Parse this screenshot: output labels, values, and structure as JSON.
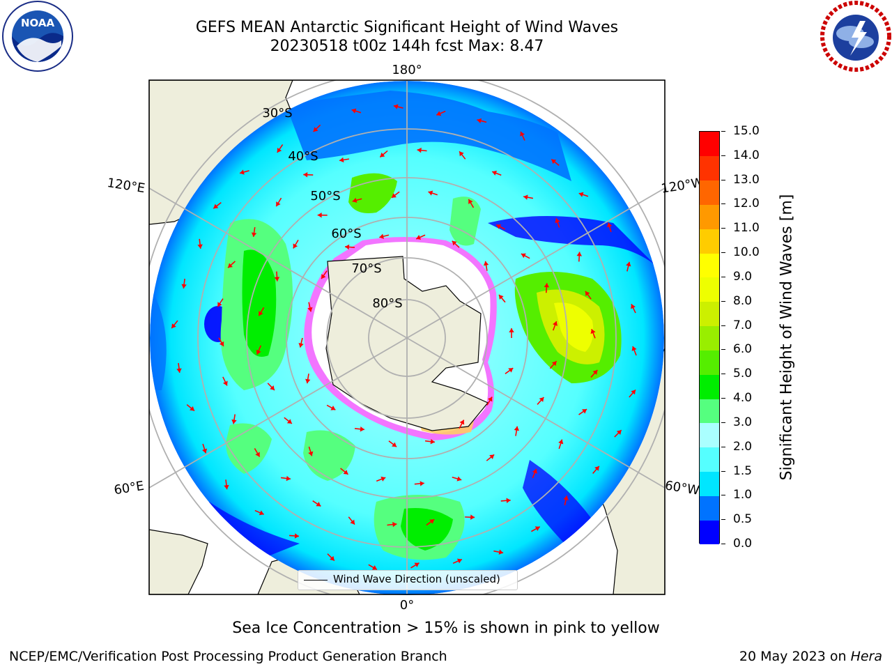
{
  "title": {
    "line1": "GEFS MEAN Antarctic Significant Height of Wind Waves",
    "line2": "20230518 t00z 144h fcst   Max: 8.47"
  },
  "logos": {
    "left": "noaa-logo",
    "right": "national-weather-service-logo"
  },
  "map": {
    "projection": "south-polar-stereographic",
    "lon_labels": [
      "180°",
      "120°E",
      "120°W",
      "60°E",
      "60°W",
      "0°"
    ],
    "lat_labels": [
      "30°S",
      "40°S",
      "50°S",
      "60°S",
      "70°S",
      "80°S"
    ],
    "legend": "Wind Wave Direction (unscaled)",
    "arrow_color": "#ff0000",
    "land_color": "#eeeedc",
    "sea_ice_colors": [
      "#ff00ff",
      "#ffff00"
    ]
  },
  "colorbar": {
    "label": "Significant Height of Wind Waves [m]",
    "ticks": [
      "0.0",
      "0.5",
      "1.0",
      "1.5",
      "2.0",
      "3.0",
      "4.0",
      "5.0",
      "6.0",
      "7.0",
      "8.0",
      "9.0",
      "10.0",
      "11.0",
      "12.0",
      "13.0",
      "14.0",
      "15.0"
    ],
    "colors": [
      "#0000ff",
      "#0073ff",
      "#00e6ff",
      "#55ffff",
      "#aaffff",
      "#55ff7f",
      "#00ee00",
      "#55ee00",
      "#99ee00",
      "#ccf000",
      "#eeff00",
      "#ffff00",
      "#ffcc00",
      "#ff9900",
      "#ff6600",
      "#ff3300",
      "#ff0000"
    ]
  },
  "caption": "Sea Ice Concentration > 15% is shown in pink to yellow",
  "footer": {
    "left": "NCEP/EMC/Verification Post Processing Product Generation Branch",
    "date": "20 May 2023 on ",
    "host": "Hera"
  }
}
